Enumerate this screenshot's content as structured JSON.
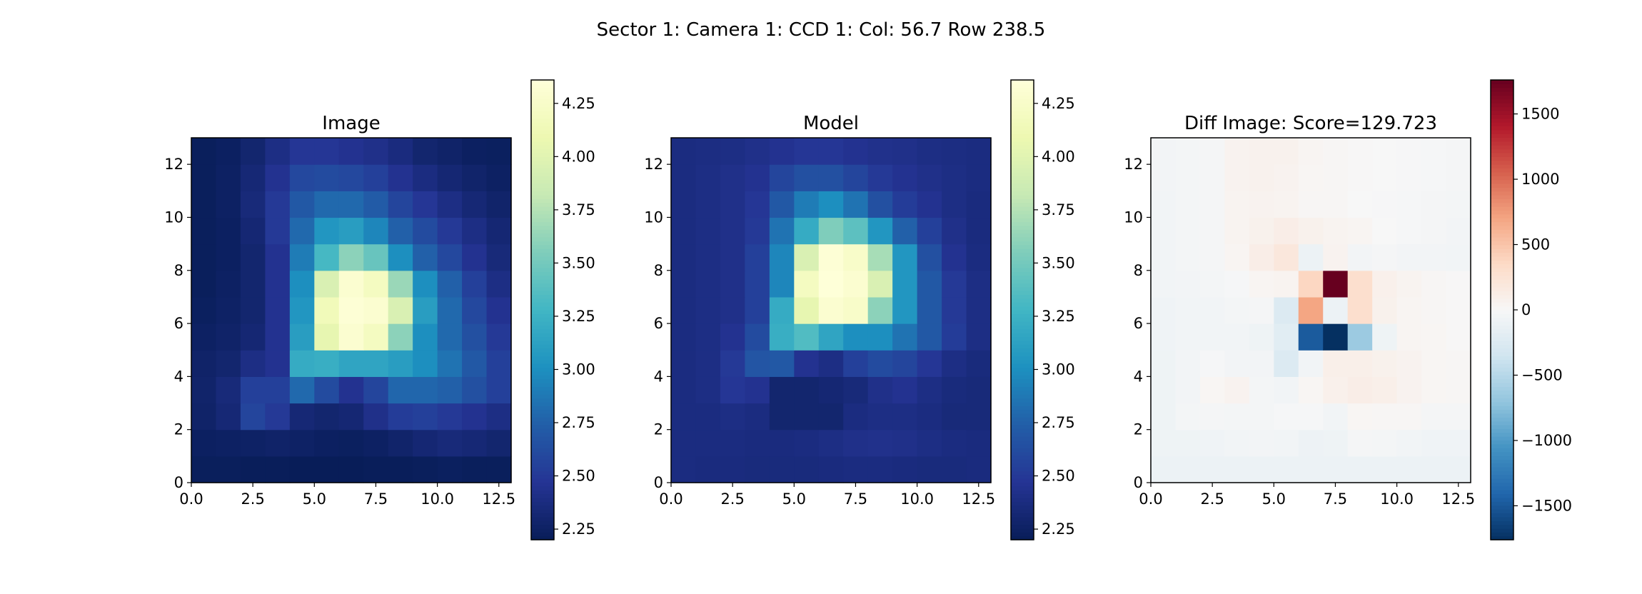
{
  "figure": {
    "suptitle": "Sector 1: Camera 1: CCD 1: Col: 56.7 Row 238.5"
  },
  "chart_data": [
    {
      "type": "heatmap",
      "title": "Image",
      "colormap": "YlGnBu_r",
      "xlim": [
        0,
        13
      ],
      "ylim": [
        0,
        13
      ],
      "xticks": [
        "0.0",
        "2.5",
        "5.0",
        "7.5",
        "10.0",
        "12.5"
      ],
      "yticks": [
        "0",
        "2",
        "4",
        "6",
        "8",
        "10",
        "12"
      ],
      "colorbar": {
        "min": 2.2,
        "max": 4.36,
        "ticks": [
          "2.25",
          "2.50",
          "2.75",
          "3.00",
          "3.25",
          "3.50",
          "3.75",
          "4.00",
          "4.25"
        ]
      },
      "values": [
        [
          2.22,
          2.22,
          2.21,
          2.21,
          2.2,
          2.2,
          2.2,
          2.21,
          2.21,
          2.22,
          2.23,
          2.22,
          2.22
        ],
        [
          2.24,
          2.25,
          2.26,
          2.27,
          2.26,
          2.24,
          2.23,
          2.25,
          2.28,
          2.32,
          2.35,
          2.33,
          2.3
        ],
        [
          2.27,
          2.33,
          2.58,
          2.5,
          2.33,
          2.3,
          2.32,
          2.42,
          2.52,
          2.55,
          2.5,
          2.45,
          2.4
        ],
        [
          2.28,
          2.35,
          2.55,
          2.55,
          2.8,
          2.62,
          2.45,
          2.58,
          2.78,
          2.78,
          2.75,
          2.65,
          2.55
        ],
        [
          2.27,
          2.3,
          2.4,
          2.45,
          3.2,
          3.22,
          3.15,
          3.15,
          3.1,
          3.0,
          2.85,
          2.7,
          2.55
        ],
        [
          2.25,
          2.27,
          2.32,
          2.45,
          3.1,
          4.05,
          4.3,
          4.2,
          3.6,
          3.0,
          2.8,
          2.65,
          2.5
        ],
        [
          2.23,
          2.26,
          2.3,
          2.45,
          3.05,
          4.15,
          4.33,
          4.3,
          3.95,
          3.1,
          2.8,
          2.6,
          2.45
        ],
        [
          2.22,
          2.25,
          2.3,
          2.45,
          3.0,
          3.95,
          4.3,
          4.2,
          3.65,
          3.0,
          2.75,
          2.55,
          2.4
        ],
        [
          2.22,
          2.24,
          2.3,
          2.45,
          2.9,
          3.3,
          3.6,
          3.45,
          3.0,
          2.75,
          2.6,
          2.45,
          2.35
        ],
        [
          2.22,
          2.24,
          2.32,
          2.5,
          2.8,
          3.05,
          3.1,
          2.95,
          2.75,
          2.62,
          2.5,
          2.4,
          2.32
        ],
        [
          2.22,
          2.25,
          2.35,
          2.5,
          2.7,
          2.8,
          2.8,
          2.72,
          2.58,
          2.48,
          2.4,
          2.33,
          2.28
        ],
        [
          2.22,
          2.25,
          2.33,
          2.45,
          2.6,
          2.62,
          2.6,
          2.55,
          2.45,
          2.38,
          2.32,
          2.28,
          2.25
        ],
        [
          2.22,
          2.24,
          2.3,
          2.4,
          2.48,
          2.48,
          2.45,
          2.42,
          2.37,
          2.3,
          2.27,
          2.24,
          2.23
        ]
      ]
    },
    {
      "type": "heatmap",
      "title": "Model",
      "colormap": "YlGnBu_r",
      "xlim": [
        0,
        13
      ],
      "ylim": [
        0,
        13
      ],
      "xticks": [
        "0.0",
        "2.5",
        "5.0",
        "7.5",
        "10.0",
        "12.5"
      ],
      "yticks": [
        "0",
        "2",
        "4",
        "6",
        "8",
        "10",
        "12"
      ],
      "colorbar": {
        "min": 2.2,
        "max": 4.36,
        "ticks": [
          "2.25",
          "2.50",
          "2.75",
          "3.00",
          "3.25",
          "3.50",
          "3.75",
          "4.00",
          "4.25"
        ]
      },
      "values": [
        [
          2.38,
          2.37,
          2.37,
          2.36,
          2.36,
          2.36,
          2.37,
          2.38,
          2.38,
          2.37,
          2.36,
          2.36,
          2.37
        ],
        [
          2.38,
          2.38,
          2.38,
          2.37,
          2.37,
          2.38,
          2.4,
          2.42,
          2.43,
          2.42,
          2.4,
          2.38,
          2.37
        ],
        [
          2.38,
          2.38,
          2.4,
          2.38,
          2.3,
          2.3,
          2.3,
          2.38,
          2.4,
          2.4,
          2.38,
          2.35,
          2.35
        ],
        [
          2.38,
          2.4,
          2.48,
          2.45,
          2.3,
          2.3,
          2.32,
          2.35,
          2.42,
          2.45,
          2.4,
          2.36,
          2.35
        ],
        [
          2.38,
          2.4,
          2.5,
          2.68,
          2.7,
          2.45,
          2.4,
          2.55,
          2.62,
          2.58,
          2.48,
          2.4,
          2.36
        ],
        [
          2.38,
          2.4,
          2.45,
          2.62,
          3.22,
          3.35,
          3.15,
          3.0,
          3.0,
          2.85,
          2.7,
          2.52,
          2.4
        ],
        [
          2.38,
          2.4,
          2.42,
          2.55,
          3.2,
          4.05,
          4.3,
          4.25,
          3.6,
          3.05,
          2.7,
          2.5,
          2.4
        ],
        [
          2.38,
          2.4,
          2.42,
          2.55,
          2.95,
          4.2,
          4.35,
          4.3,
          3.95,
          3.05,
          2.7,
          2.5,
          2.4
        ],
        [
          2.38,
          2.4,
          2.42,
          2.55,
          2.95,
          3.95,
          4.33,
          4.25,
          3.7,
          3.05,
          2.65,
          2.45,
          2.38
        ],
        [
          2.38,
          2.4,
          2.42,
          2.5,
          2.85,
          3.2,
          3.55,
          3.4,
          3.05,
          2.75,
          2.55,
          2.42,
          2.37
        ],
        [
          2.38,
          2.4,
          2.42,
          2.48,
          2.7,
          2.9,
          3.0,
          2.85,
          2.65,
          2.52,
          2.45,
          2.4,
          2.37
        ],
        [
          2.38,
          2.4,
          2.42,
          2.45,
          2.58,
          2.65,
          2.65,
          2.58,
          2.5,
          2.45,
          2.42,
          2.4,
          2.38
        ],
        [
          2.38,
          2.39,
          2.4,
          2.42,
          2.45,
          2.48,
          2.48,
          2.45,
          2.43,
          2.42,
          2.4,
          2.39,
          2.38
        ]
      ]
    },
    {
      "type": "heatmap",
      "title": "Diff Image: Score=129.723",
      "colormap": "RdBu_r",
      "xlim": [
        0,
        13
      ],
      "ylim": [
        0,
        13
      ],
      "xticks": [
        "0.0",
        "2.5",
        "5.0",
        "7.5",
        "10.0",
        "12.5"
      ],
      "yticks": [
        "0",
        "2",
        "4",
        "6",
        "8",
        "10",
        "12"
      ],
      "colorbar": {
        "min": -1760,
        "max": 1760,
        "ticks": [
          "−1500",
          "−1000",
          "−500",
          "0",
          "500",
          "1000",
          "1500"
        ]
      },
      "values": [
        [
          -100,
          -100,
          -100,
          -100,
          -100,
          -100,
          -100,
          -100,
          -100,
          -100,
          -100,
          -100,
          -100
        ],
        [
          -80,
          -80,
          -70,
          -60,
          -50,
          -60,
          -90,
          -80,
          -30,
          -40,
          -60,
          -70,
          -70
        ],
        [
          -80,
          -40,
          -30,
          -40,
          -40,
          -20,
          -20,
          -60,
          30,
          20,
          20,
          -30,
          -30
        ],
        [
          -80,
          -50,
          30,
          60,
          -40,
          -60,
          30,
          90,
          120,
          100,
          60,
          30,
          20
        ],
        [
          -80,
          -50,
          -20,
          -50,
          -50,
          -250,
          -60,
          100,
          100,
          80,
          60,
          30,
          20
        ],
        [
          -70,
          -60,
          -60,
          -60,
          -80,
          -200,
          -1480,
          -1760,
          -650,
          -80,
          40,
          30,
          10
        ],
        [
          -70,
          -60,
          -60,
          -40,
          -30,
          -250,
          700,
          -100,
          300,
          80,
          40,
          20,
          10
        ],
        [
          -60,
          -50,
          -40,
          -20,
          40,
          50,
          380,
          1760,
          300,
          90,
          50,
          20,
          10
        ],
        [
          -60,
          -40,
          -30,
          40,
          120,
          200,
          -100,
          60,
          -50,
          -30,
          -50,
          -50,
          -60
        ],
        [
          -60,
          -40,
          -30,
          50,
          80,
          120,
          80,
          50,
          40,
          0,
          -20,
          -30,
          -50
        ],
        [
          -60,
          -40,
          -30,
          50,
          60,
          50,
          20,
          20,
          0,
          -10,
          -20,
          -30,
          -40
        ],
        [
          -50,
          -40,
          -30,
          60,
          70,
          60,
          30,
          20,
          10,
          0,
          -10,
          -20,
          -30
        ],
        [
          -50,
          -40,
          -30,
          60,
          70,
          70,
          40,
          20,
          10,
          0,
          -10,
          -20,
          -30
        ]
      ]
    }
  ]
}
